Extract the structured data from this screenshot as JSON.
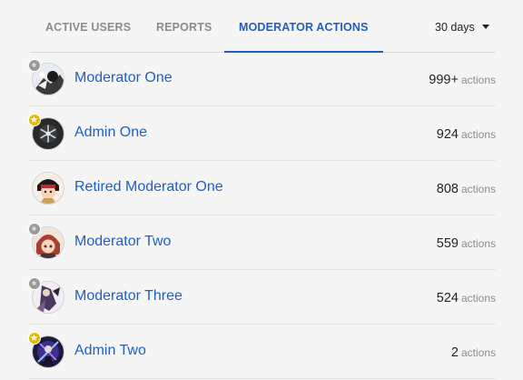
{
  "tabs": [
    {
      "label": "ACTIVE USERS",
      "active": false
    },
    {
      "label": "REPORTS",
      "active": false
    },
    {
      "label": "MODERATOR ACTIONS",
      "active": true
    }
  ],
  "period": {
    "label": "30 days"
  },
  "colors": {
    "link": "#1f5ec7",
    "muted": "#8c8c8c",
    "moderator_badge": "#9a9a9a",
    "admin_badge": "#e6b800",
    "background": "#f5f5f5"
  },
  "users": [
    {
      "name": "Moderator One",
      "count": "999+",
      "unit": "actions",
      "badge": "moderator-badge-icon"
    },
    {
      "name": "Admin One",
      "count": "924",
      "unit": "actions",
      "badge": "admin-star-badge-icon"
    },
    {
      "name": "Retired Moderator One",
      "count": "808",
      "unit": "actions",
      "badge": ""
    },
    {
      "name": "Moderator Two",
      "count": "559",
      "unit": "actions",
      "badge": "moderator-badge-icon"
    },
    {
      "name": "Moderator Three",
      "count": "524",
      "unit": "actions",
      "badge": "moderator-badge-icon"
    },
    {
      "name": "Admin Two",
      "count": "2",
      "unit": "actions",
      "badge": "admin-star-badge-icon"
    }
  ]
}
